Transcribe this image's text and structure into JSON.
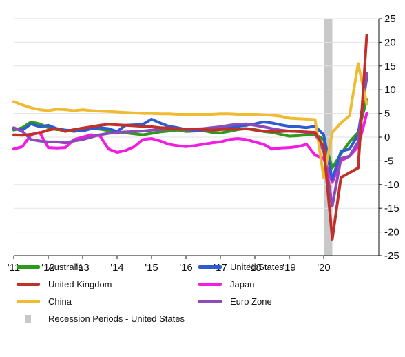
{
  "chart_data": {
    "type": "line",
    "title": "",
    "xlabel": "",
    "ylabel": "",
    "ylim": [
      -25,
      25
    ],
    "xlim": [
      2011.0,
      2021.25
    ],
    "grid": "horizontal",
    "y_axis_side": "right",
    "legend_position": "bottom",
    "yticks": [
      25,
      20,
      15,
      10,
      5,
      0,
      -5,
      -10,
      -15,
      -20,
      -25
    ],
    "ytick_labels": [
      "25",
      "20",
      "15",
      "10",
      "5",
      "0",
      "-5",
      "-10",
      "-15",
      "-20",
      "-25"
    ],
    "xtick_labels": [
      "'11",
      "'12",
      "'13",
      "'14",
      "'15",
      "'16",
      "'17",
      "'18",
      "'19",
      "'20"
    ],
    "xticks": [
      2011,
      2012,
      2013,
      2014,
      2015,
      2016,
      2017,
      2018,
      2019,
      2020
    ],
    "recession": {
      "name": "Recession Periods - United States",
      "start": 2020.0,
      "end": 2020.25,
      "color": "#c8c8c8"
    },
    "series": [
      {
        "name": "Australia",
        "color": "#2e9a1b",
        "x": [
          2011.0,
          2011.25,
          2011.5,
          2011.75,
          2012.0,
          2012.25,
          2012.5,
          2012.75,
          2013.0,
          2013.25,
          2013.5,
          2013.75,
          2014.0,
          2014.25,
          2014.5,
          2014.75,
          2015.0,
          2015.25,
          2015.5,
          2015.75,
          2016.0,
          2016.25,
          2016.5,
          2016.75,
          2017.0,
          2017.25,
          2017.5,
          2017.75,
          2018.0,
          2018.25,
          2018.5,
          2018.75,
          2019.0,
          2019.25,
          2019.5,
          2019.75,
          2020.0,
          2020.25,
          2020.5,
          2020.75,
          2021.0,
          2021.25
        ],
        "y": [
          1.5,
          2.0,
          3.2,
          2.8,
          2.0,
          1.6,
          1.5,
          1.2,
          1.5,
          1.8,
          1.7,
          1.4,
          1.1,
          0.9,
          0.7,
          0.5,
          0.8,
          1.1,
          1.3,
          1.5,
          1.2,
          1.3,
          1.4,
          1.0,
          0.9,
          1.2,
          1.6,
          1.8,
          1.6,
          1.2,
          1.0,
          0.6,
          0.2,
          0.3,
          0.5,
          0.6,
          -0.5,
          -6.5,
          -3.5,
          -1.0,
          1.0,
          8.0
        ]
      },
      {
        "name": "United Kingdom",
        "color": "#c0312b",
        "x": [
          2011.0,
          2011.25,
          2011.5,
          2011.75,
          2012.0,
          2012.25,
          2012.5,
          2012.75,
          2013.0,
          2013.25,
          2013.5,
          2013.75,
          2014.0,
          2014.25,
          2014.5,
          2014.75,
          2015.0,
          2015.25,
          2015.5,
          2015.75,
          2016.0,
          2016.25,
          2016.5,
          2016.75,
          2017.0,
          2017.25,
          2017.5,
          2017.75,
          2018.0,
          2018.25,
          2018.5,
          2018.75,
          2019.0,
          2019.25,
          2019.5,
          2019.75,
          2020.0,
          2020.25,
          2020.5,
          2020.75,
          2021.0,
          2021.25
        ],
        "y": [
          0.5,
          0.4,
          0.6,
          0.9,
          1.5,
          1.8,
          1.2,
          1.6,
          1.9,
          2.2,
          2.5,
          2.7,
          2.6,
          2.5,
          2.4,
          2.3,
          2.2,
          2.0,
          1.9,
          1.8,
          1.7,
          1.7,
          1.6,
          1.5,
          1.6,
          1.7,
          1.7,
          1.8,
          1.5,
          1.3,
          1.2,
          1.2,
          1.3,
          1.2,
          1.1,
          1.0,
          -2.0,
          -21.5,
          -8.5,
          -7.5,
          -6.5,
          21.5
        ]
      },
      {
        "name": "China",
        "color": "#f0bb33",
        "x": [
          2011.0,
          2011.25,
          2011.5,
          2011.75,
          2012.0,
          2012.25,
          2012.5,
          2012.75,
          2013.0,
          2013.25,
          2013.5,
          2013.75,
          2014.0,
          2014.25,
          2014.5,
          2014.75,
          2015.0,
          2015.25,
          2015.5,
          2015.75,
          2016.0,
          2016.25,
          2016.5,
          2016.75,
          2017.0,
          2017.25,
          2017.5,
          2017.75,
          2018.0,
          2018.25,
          2018.5,
          2018.75,
          2019.0,
          2019.25,
          2019.5,
          2019.75,
          2020.0,
          2020.25,
          2020.5,
          2020.75,
          2021.0,
          2021.25
        ],
        "y": [
          7.5,
          6.8,
          6.2,
          5.8,
          5.6,
          5.9,
          5.8,
          5.6,
          5.8,
          5.6,
          5.5,
          5.4,
          5.3,
          5.2,
          5.1,
          5.0,
          5.0,
          4.9,
          4.9,
          4.8,
          4.8,
          4.8,
          4.8,
          4.8,
          4.9,
          4.9,
          4.8,
          4.8,
          4.8,
          4.7,
          4.6,
          4.4,
          4.0,
          3.9,
          3.8,
          3.7,
          -8.5,
          1.0,
          3.0,
          4.5,
          15.5,
          7.0
        ]
      },
      {
        "name": "United States",
        "color": "#2f5bd0",
        "x": [
          2011.0,
          2011.25,
          2011.5,
          2011.75,
          2012.0,
          2012.25,
          2012.5,
          2012.75,
          2013.0,
          2013.25,
          2013.5,
          2013.75,
          2014.0,
          2014.25,
          2014.5,
          2014.75,
          2015.0,
          2015.25,
          2015.5,
          2015.75,
          2016.0,
          2016.25,
          2016.5,
          2016.75,
          2017.0,
          2017.25,
          2017.5,
          2017.75,
          2018.0,
          2018.25,
          2018.5,
          2018.75,
          2019.0,
          2019.25,
          2019.5,
          2019.75,
          2020.0,
          2020.25,
          2020.5,
          2020.75,
          2021.0,
          2021.25
        ],
        "y": [
          1.8,
          1.5,
          2.8,
          2.2,
          2.5,
          1.8,
          1.5,
          1.4,
          1.3,
          1.8,
          2.0,
          1.8,
          1.2,
          2.5,
          2.6,
          2.7,
          3.8,
          3.0,
          2.3,
          2.0,
          1.6,
          1.4,
          1.5,
          1.6,
          1.9,
          2.2,
          2.3,
          2.5,
          2.8,
          3.2,
          3.0,
          2.6,
          2.3,
          2.2,
          2.0,
          2.3,
          0.5,
          -9.0,
          -3.0,
          -2.5,
          0.5,
          12.5
        ]
      },
      {
        "name": "Japan",
        "color": "#f21ce3",
        "x": [
          2011.0,
          2011.25,
          2011.5,
          2011.75,
          2012.0,
          2012.25,
          2012.5,
          2012.75,
          2013.0,
          2013.25,
          2013.5,
          2013.75,
          2014.0,
          2014.25,
          2014.5,
          2014.75,
          2015.0,
          2015.25,
          2015.5,
          2015.75,
          2016.0,
          2016.25,
          2016.5,
          2016.75,
          2017.0,
          2017.25,
          2017.5,
          2017.75,
          2018.0,
          2018.25,
          2018.5,
          2018.75,
          2019.0,
          2019.25,
          2019.5,
          2019.75,
          2020.0,
          2020.25,
          2020.5,
          2020.75,
          2021.0,
          2021.25
        ],
        "y": [
          -2.5,
          -2.0,
          0.5,
          1.0,
          -2.2,
          -2.3,
          -2.2,
          -0.5,
          0.0,
          0.5,
          0.3,
          -2.5,
          -3.2,
          -2.8,
          -2.0,
          -0.5,
          -0.3,
          -0.8,
          -1.5,
          -1.8,
          -2.0,
          -1.8,
          -1.5,
          -1.2,
          -1.0,
          -0.5,
          -0.3,
          -0.5,
          -1.0,
          -1.5,
          -2.5,
          -2.3,
          -2.2,
          -2.0,
          -1.5,
          -3.8,
          -4.5,
          -9.5,
          -5.0,
          -4.0,
          -2.0,
          5.0
        ]
      },
      {
        "name": "Euro Zone",
        "color": "#8e4bb8",
        "x": [
          2011.0,
          2011.25,
          2011.5,
          2011.75,
          2012.0,
          2012.25,
          2012.5,
          2012.75,
          2013.0,
          2013.25,
          2013.5,
          2013.75,
          2014.0,
          2014.25,
          2014.5,
          2014.75,
          2015.0,
          2015.25,
          2015.5,
          2015.75,
          2016.0,
          2016.25,
          2016.5,
          2016.75,
          2017.0,
          2017.25,
          2017.5,
          2017.75,
          2018.0,
          2018.25,
          2018.5,
          2018.75,
          2019.0,
          2019.25,
          2019.5,
          2019.75,
          2020.0,
          2020.25,
          2020.5,
          2020.75,
          2021.0,
          2021.25
        ],
        "y": [
          2.0,
          1.2,
          -0.5,
          -0.8,
          -1.0,
          -1.0,
          -1.2,
          -0.8,
          -0.5,
          0.0,
          0.5,
          0.8,
          1.0,
          1.1,
          1.2,
          1.3,
          1.5,
          1.6,
          1.7,
          1.7,
          1.6,
          1.7,
          1.8,
          2.0,
          2.2,
          2.5,
          2.7,
          2.8,
          2.5,
          2.2,
          1.8,
          1.5,
          1.3,
          1.2,
          1.0,
          0.8,
          -3.0,
          -14.5,
          -4.5,
          -4.0,
          -1.0,
          13.5
        ]
      }
    ]
  }
}
